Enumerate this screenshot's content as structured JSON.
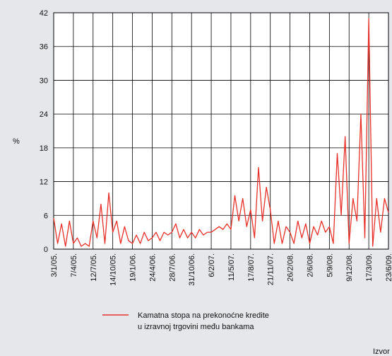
{
  "chart_data": {
    "type": "line",
    "yaxis_label": "%",
    "categories": [
      "3/1/05.",
      null,
      null,
      null,
      null,
      "7/4/05.",
      null,
      null,
      null,
      null,
      "12/7/05.",
      null,
      null,
      null,
      null,
      "14/10/05.",
      null,
      null,
      null,
      null,
      "19/1/06.",
      null,
      null,
      null,
      null,
      "24/4/06.",
      null,
      null,
      null,
      null,
      "28/7/06.",
      null,
      null,
      null,
      null,
      "31/10/06.",
      null,
      null,
      null,
      null,
      "6/2/07.",
      null,
      null,
      null,
      null,
      "11/5/07.",
      null,
      null,
      null,
      null,
      "17/8/07.",
      null,
      null,
      null,
      null,
      "21/11/07.",
      null,
      null,
      null,
      null,
      "26/2/08.",
      null,
      null,
      null,
      null,
      "2/6/08.",
      null,
      null,
      null,
      null,
      "5/9/08.",
      null,
      null,
      null,
      null,
      "9/12/08.",
      null,
      null,
      null,
      null,
      "17/3/09.",
      null,
      null,
      null,
      null,
      "23/6/09."
    ],
    "series": [
      {
        "name": "Kamatna stopa na prekonoćne kredite u izravnoj trgovini među bankama",
        "name_lines": [
          "Kamatna stopa na prekonoćne kredite",
          "u izravnoj trgovini među bankama"
        ],
        "color": "#e8302a",
        "values": [
          5.5,
          1,
          4.5,
          0.5,
          5,
          1,
          2,
          0.5,
          1,
          0.5,
          5,
          2,
          8,
          1,
          10,
          3,
          5,
          1,
          4,
          1.5,
          1,
          2.5,
          1,
          3,
          1.5,
          2,
          3,
          1.5,
          3,
          2.5,
          3,
          4.5,
          2,
          3.5,
          2,
          3,
          2,
          3.5,
          2.5,
          3,
          3,
          3.5,
          4,
          3.5,
          4.5,
          3.5,
          9.5,
          5,
          9,
          4,
          7,
          2,
          14.5,
          5,
          11,
          7,
          1,
          5,
          1,
          4,
          3,
          1,
          5,
          2,
          4.5,
          1,
          4,
          2.5,
          5,
          3,
          4,
          1,
          17,
          6,
          20,
          1,
          9,
          5,
          24,
          2,
          41,
          0.5,
          9,
          3,
          9,
          6.5
        ]
      }
    ],
    "ylim": [
      0,
      42
    ],
    "yticks": [
      0,
      6,
      12,
      18,
      24,
      30,
      36,
      42
    ],
    "grid": true,
    "source": "Izvor"
  }
}
